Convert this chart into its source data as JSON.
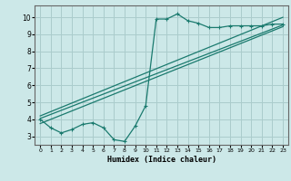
{
  "xlabel": "Humidex (Indice chaleur)",
  "background_color": "#cce8e8",
  "grid_color": "#aacccc",
  "line_color": "#1a7a6e",
  "xlim": [
    -0.5,
    23.5
  ],
  "ylim": [
    2.5,
    10.7
  ],
  "xticks": [
    0,
    1,
    2,
    3,
    4,
    5,
    6,
    7,
    8,
    9,
    10,
    11,
    12,
    13,
    14,
    15,
    16,
    17,
    18,
    19,
    20,
    21,
    22,
    23
  ],
  "yticks": [
    3,
    4,
    5,
    6,
    7,
    8,
    9,
    10
  ],
  "main_x": [
    0,
    1,
    2,
    3,
    4,
    5,
    6,
    7,
    8,
    9,
    10,
    11,
    12,
    13,
    14,
    15,
    16,
    17,
    18,
    19,
    20,
    21,
    22,
    23
  ],
  "main_y": [
    4.0,
    3.5,
    3.2,
    3.4,
    3.7,
    3.8,
    3.5,
    2.8,
    2.7,
    3.6,
    4.8,
    9.9,
    9.9,
    10.2,
    9.8,
    9.65,
    9.4,
    9.4,
    9.5,
    9.5,
    9.5,
    9.5,
    9.6,
    9.6
  ],
  "line1_x": [
    0,
    23
  ],
  "line1_y": [
    4.05,
    9.55
  ],
  "line2_x": [
    0,
    23
  ],
  "line2_y": [
    3.75,
    9.45
  ],
  "line3_x": [
    0,
    23
  ],
  "line3_y": [
    4.2,
    10.0
  ]
}
